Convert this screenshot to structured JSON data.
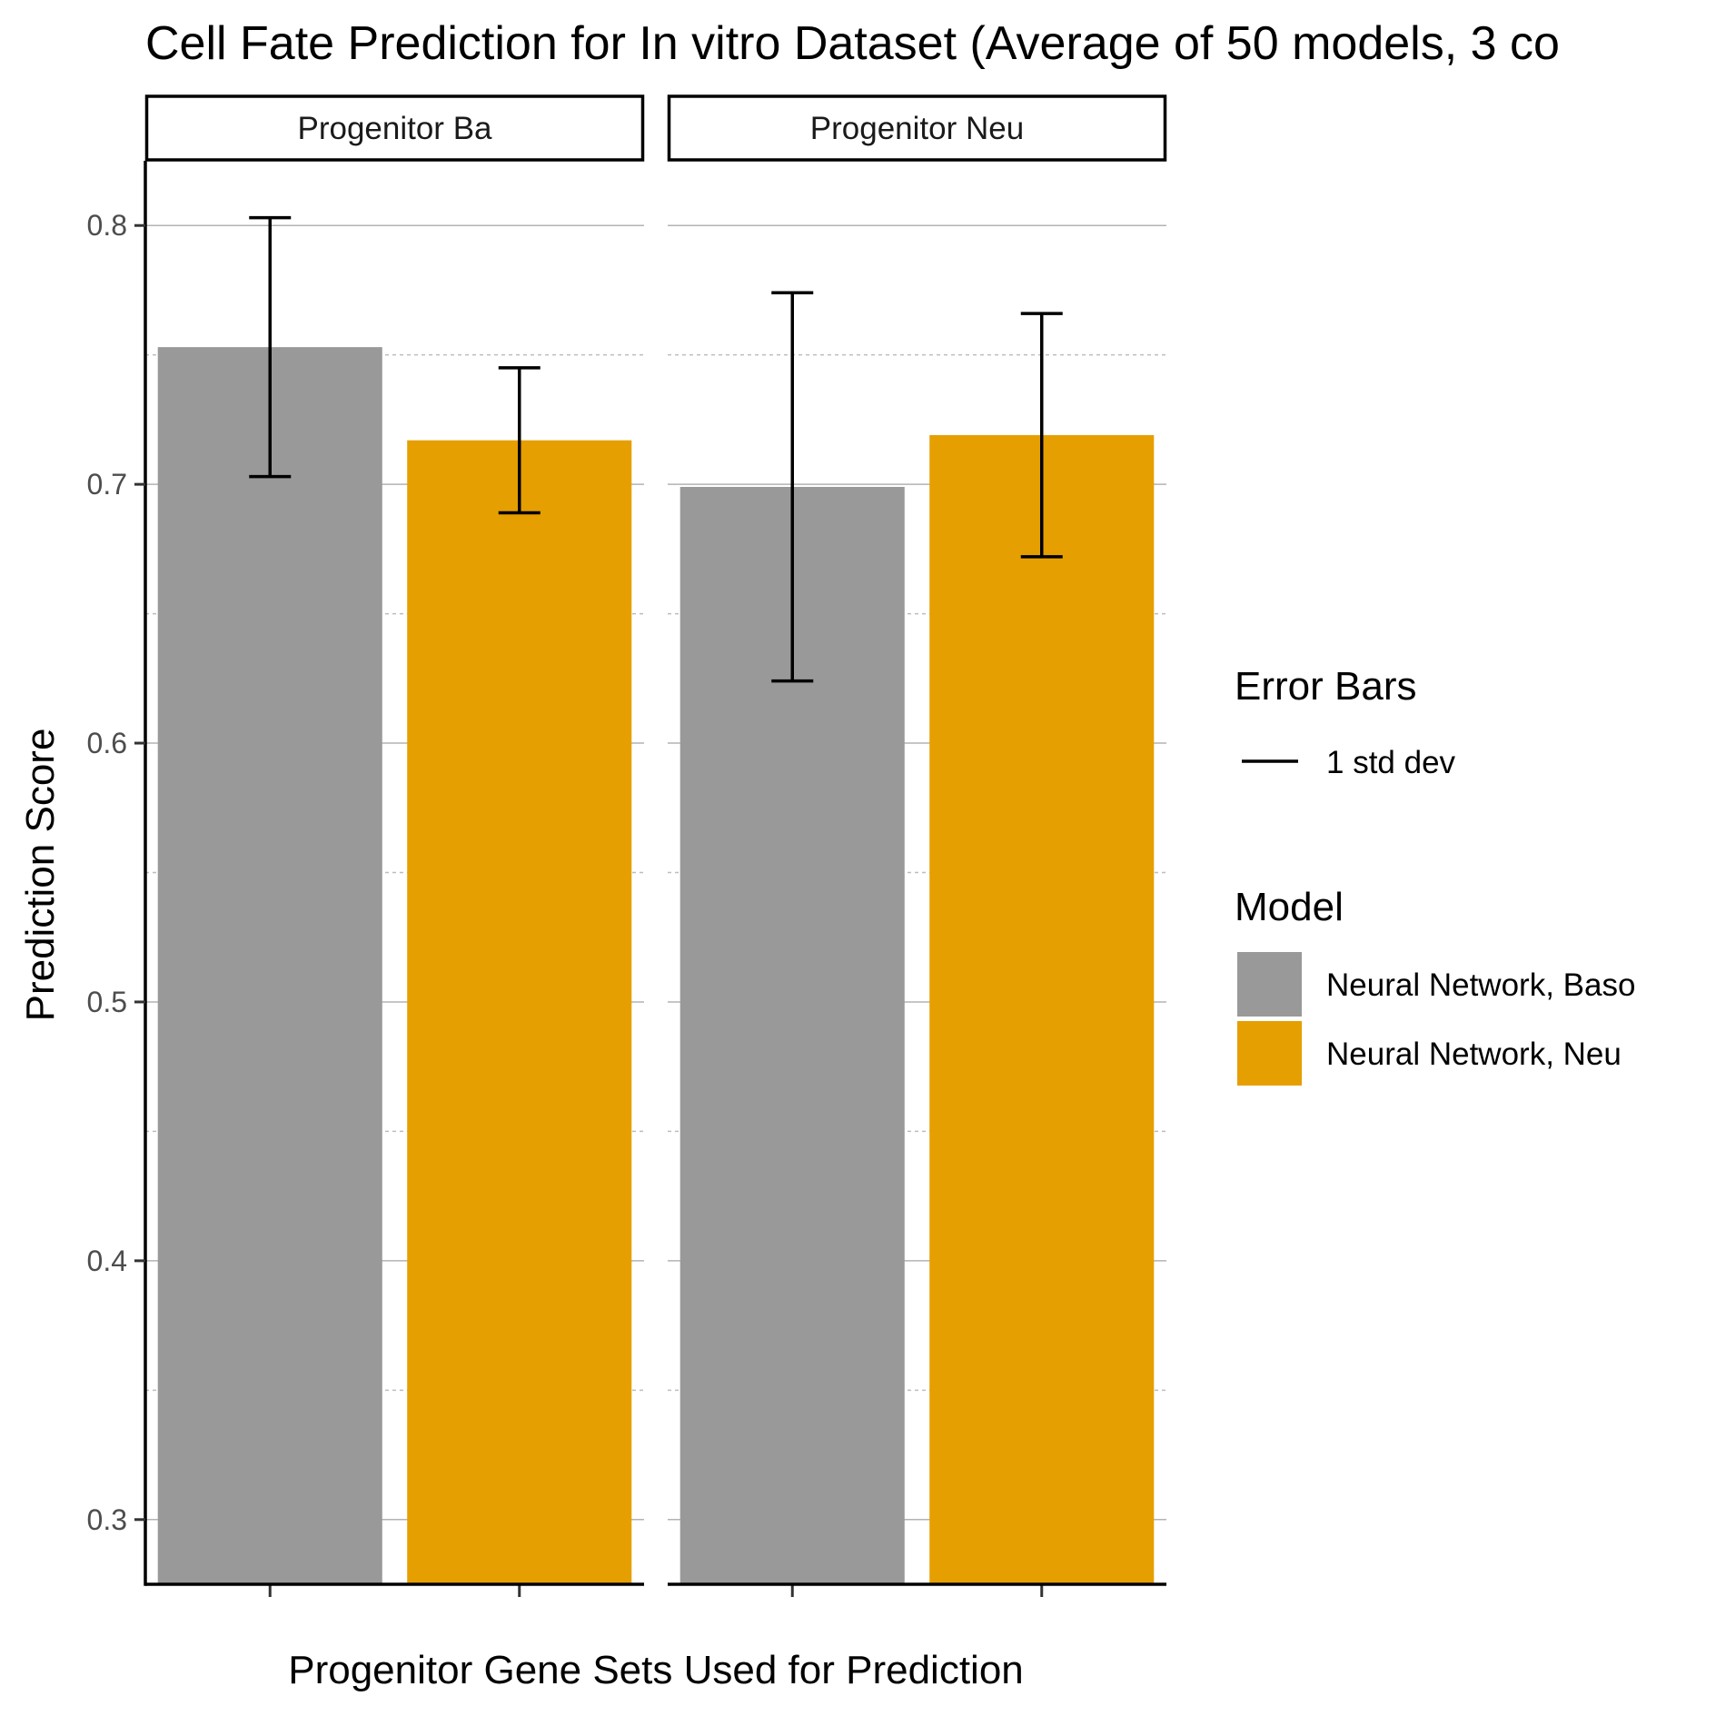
{
  "chart_data": {
    "type": "bar",
    "title": "Cell Fate Prediction for In vitro Dataset (Average of 50 models, 3 co",
    "xlabel": "Progenitor Gene Sets Used for Prediction",
    "ylabel": "Prediction Score",
    "ylim": [
      0.275,
      0.825
    ],
    "yticks": [
      0.3,
      0.4,
      0.5,
      0.6,
      0.7,
      0.8
    ],
    "ytick_labels": [
      "0.3",
      "0.4",
      "0.5",
      "0.6",
      "0.7",
      "0.8"
    ],
    "grid": true,
    "legend_position": "right",
    "facets": [
      {
        "label": "Progenitor Ba",
        "series": [
          {
            "name": "Neural Network, Baso",
            "value": 0.753,
            "err_low": 0.703,
            "err_high": 0.803
          },
          {
            "name": "Neural Network, Neu",
            "value": 0.717,
            "err_low": 0.689,
            "err_high": 0.745
          }
        ]
      },
      {
        "label": "Progenitor Neu",
        "series": [
          {
            "name": "Neural Network, Baso",
            "value": 0.699,
            "err_low": 0.624,
            "err_high": 0.774
          },
          {
            "name": "Neural Network, Neu",
            "value": 0.719,
            "err_low": 0.672,
            "err_high": 0.766
          }
        ]
      }
    ],
    "legend": {
      "error_bars_title": "Error Bars",
      "error_bars_label": "1 std dev",
      "model_title": "Model",
      "models": [
        {
          "name": "Neural Network, Baso",
          "color": "#999999"
        },
        {
          "name": "Neural Network, Neu",
          "color": "#E69F00"
        }
      ]
    }
  }
}
